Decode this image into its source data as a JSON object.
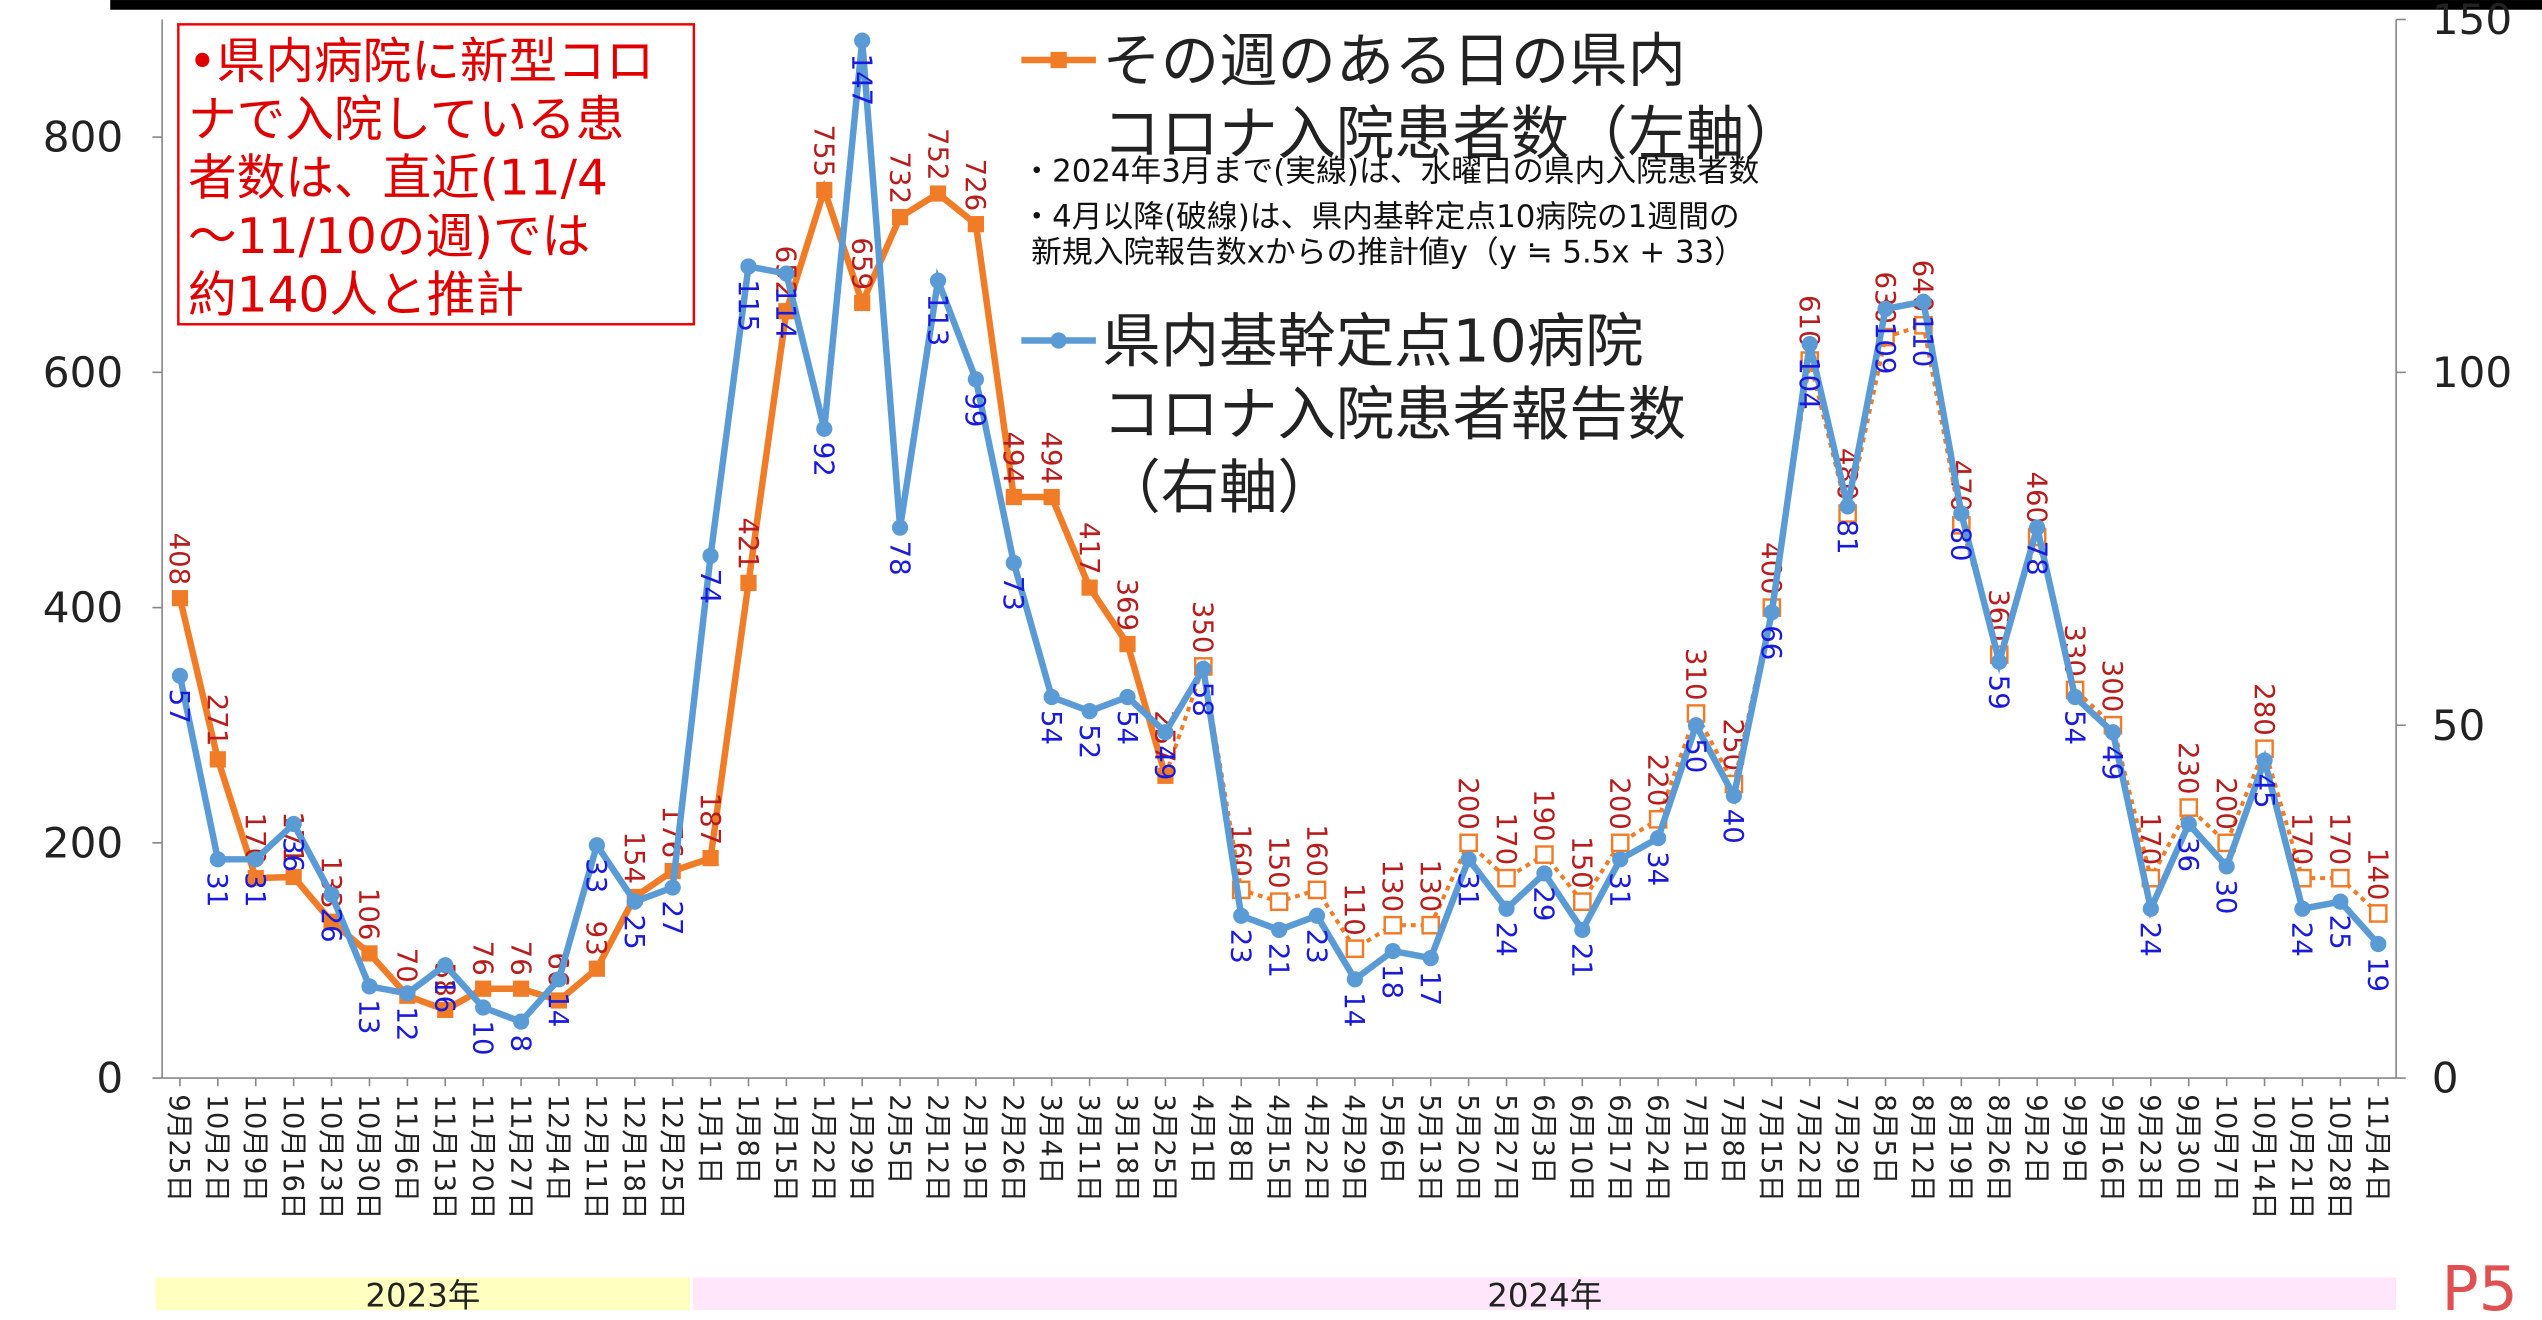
{
  "chart_data": {
    "type": "line",
    "categories": [
      "9月25日",
      "10月2日",
      "10月9日",
      "10月16日",
      "10月23日",
      "10月30日",
      "11月6日",
      "11月13日",
      "11月20日",
      "11月27日",
      "12月4日",
      "12月11日",
      "12月18日",
      "12月25日",
      "1月1日",
      "1月8日",
      "1月15日",
      "1月22日",
      "1月29日",
      "2月5日",
      "2月12日",
      "2月19日",
      "2月26日",
      "3月4日",
      "3月11日",
      "3月18日",
      "3月25日",
      "4月1日",
      "4月8日",
      "4月15日",
      "4月22日",
      "4月29日",
      "5月6日",
      "5月13日",
      "5月20日",
      "5月27日",
      "6月3日",
      "6月10日",
      "6月17日",
      "6月24日",
      "7月1日",
      "7月8日",
      "7月15日",
      "7月22日",
      "7月29日",
      "8月5日",
      "8月12日",
      "8月19日",
      "8月26日",
      "9月2日",
      "9月9日",
      "9月16日",
      "9月23日",
      "9月30日",
      "10月7日",
      "10月14日",
      "10月21日",
      "10月28日",
      "11月4日"
    ],
    "years": [
      {
        "label": "2023年",
        "count": 14,
        "color": "#ffffc0"
      },
      {
        "label": "2024年",
        "count": 45,
        "color": "#ffe6fa"
      }
    ],
    "series": [
      {
        "name": "その週のある日の県内\nコロナ入院患者数（左軸）",
        "color": "#f07c28",
        "label_color": "#b81c1c",
        "marker": "square",
        "dashed_from": 27,
        "values": [
          408,
          271,
          170,
          171,
          133,
          106,
          70,
          58,
          76,
          76,
          66,
          93,
          154,
          176,
          187,
          421,
          652,
          755,
          659,
          732,
          752,
          726,
          494,
          494,
          417,
          369,
          257,
          350,
          160,
          150,
          160,
          110,
          130,
          130,
          200,
          170,
          190,
          150,
          200,
          220,
          310,
          250,
          400,
          610,
          480,
          630,
          640,
          470,
          360,
          460,
          330,
          300,
          170,
          230,
          200,
          280,
          170,
          170,
          140
        ]
      },
      {
        "name": "県内基幹定点10病院\nコロナ入院患者報告数\n（右軸）",
        "color": "#5b9bd5",
        "label_color": "#1a1adc",
        "marker": "circle",
        "axis": "y2",
        "values": [
          57,
          31,
          31,
          36,
          26,
          13,
          12,
          16,
          10,
          8,
          14,
          33,
          25,
          27,
          74,
          115,
          114,
          92,
          147,
          78,
          113,
          99,
          73,
          54,
          52,
          54,
          49,
          58,
          23,
          21,
          23,
          14,
          18,
          17,
          31,
          24,
          29,
          21,
          31,
          34,
          50,
          40,
          66,
          104,
          81,
          109,
          110,
          80,
          59,
          78,
          54,
          49,
          24,
          36,
          30,
          45,
          24,
          25,
          19
        ]
      }
    ],
    "ylim": [
      0,
      900
    ],
    "yticks": [
      0,
      200,
      400,
      600,
      800
    ],
    "y2lim": [
      0,
      150
    ],
    "y2ticks": [
      0,
      50,
      100,
      150
    ],
    "annotations": [
      "•県内病院に新型コロ\nナで入院している患\n者数は、直近(11/4\n～11/10の週)では\n約140人と推計",
      "・2024年3月まで(実線)は、水曜日の県内入院患者数",
      "・4月以降(破線)は、県内基幹定点10病院の1週間の\n  新規入院報告数xからの推計値y（y ≒ 5.5x + 33）"
    ],
    "page_label": "P5"
  }
}
